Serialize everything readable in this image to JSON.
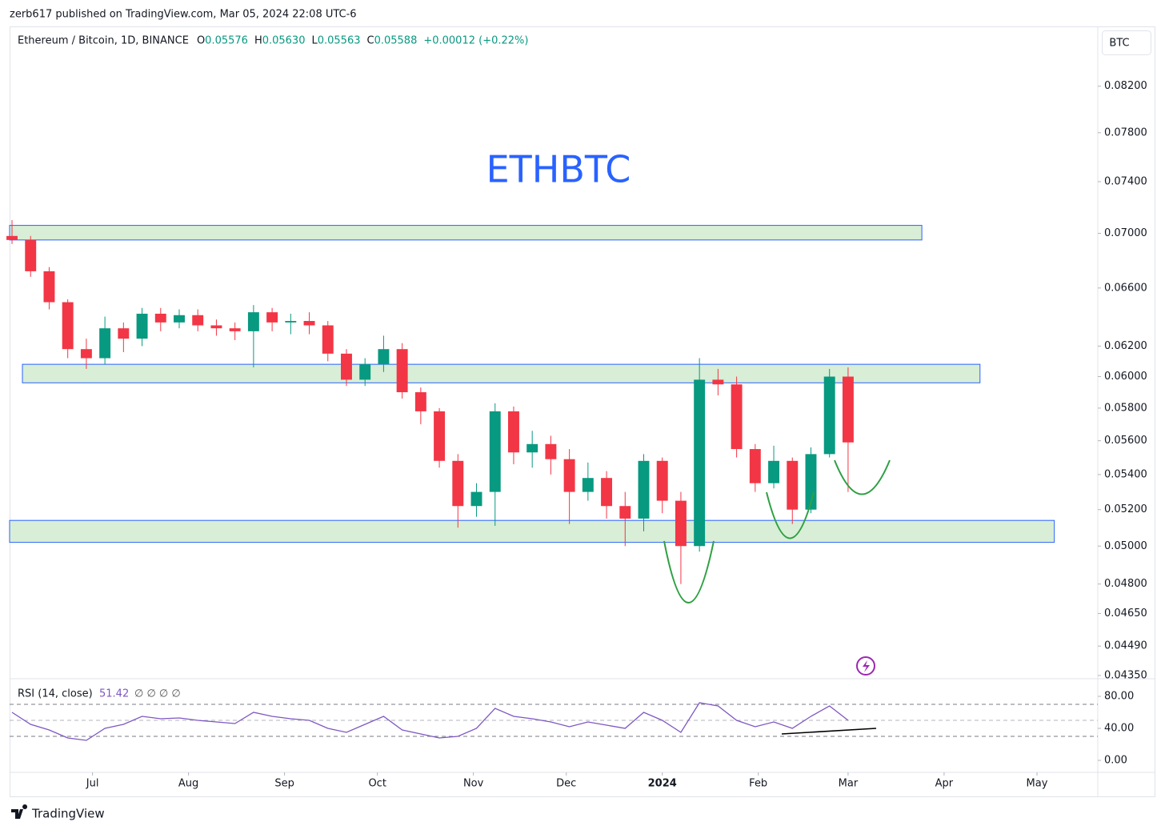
{
  "page": {
    "publisher": "zerb617 published on TradingView.com, Mar 05, 2024 22:08 UTC-6",
    "brand": "TradingView",
    "currency": "BTC"
  },
  "header": {
    "symbol": "Ethereum / Bitcoin, 1D, BINANCE",
    "ohlc": [
      {
        "label": "O",
        "value": "0.05576"
      },
      {
        "label": "H",
        "value": "0.05630"
      },
      {
        "label": "L",
        "value": "0.05563"
      },
      {
        "label": "C",
        "value": "0.05588"
      }
    ],
    "change": "+0.00012 (+0.22%)"
  },
  "chart_data": [
    {
      "type": "candlestick",
      "title": "ETHBTC",
      "log_scale": true,
      "up_color": "#089981",
      "down_color": "#f23645",
      "xlim": [
        -0.13,
        58.44
      ],
      "xticks": [
        {
          "value": 4.333,
          "label": "Jul"
        },
        {
          "value": 9.5,
          "label": "Aug"
        },
        {
          "value": 14.667,
          "label": "Sep"
        },
        {
          "value": 19.667,
          "label": "Oct"
        },
        {
          "value": 24.833,
          "label": "Nov"
        },
        {
          "value": 29.833,
          "label": "Dec"
        },
        {
          "value": 35,
          "label": "2024"
        },
        {
          "value": 40.167,
          "label": "Feb"
        },
        {
          "value": 45,
          "label": "Mar"
        },
        {
          "value": 50.167,
          "label": "Apr"
        },
        {
          "value": 55.167,
          "label": "May"
        }
      ],
      "ylim": [
        0.0435,
        0.0873
      ],
      "yticks": [
        {
          "value": 0.082,
          "label": "0.08200"
        },
        {
          "value": 0.078,
          "label": "0.07800"
        },
        {
          "value": 0.074,
          "label": "0.07400"
        },
        {
          "value": 0.07,
          "label": "0.07000"
        },
        {
          "value": 0.066,
          "label": "0.06600"
        },
        {
          "value": 0.062,
          "label": "0.06200"
        },
        {
          "value": 0.06,
          "label": "0.06000"
        },
        {
          "value": 0.058,
          "label": "0.05800"
        },
        {
          "value": 0.056,
          "label": "0.05600"
        },
        {
          "value": 0.054,
          "label": "0.05400"
        },
        {
          "value": 0.052,
          "label": "0.05200"
        },
        {
          "value": 0.05,
          "label": "0.05000"
        },
        {
          "value": 0.048,
          "label": "0.04800"
        },
        {
          "value": 0.0465,
          "label": "0.04650"
        },
        {
          "value": 0.0449,
          "label": "0.04490"
        },
        {
          "value": 0.0435,
          "label": "0.04350"
        }
      ],
      "zones": [
        {
          "x": [
            -0.13,
            48.97
          ],
          "y": [
            0.0695,
            0.0706
          ]
        },
        {
          "x": [
            0.56,
            52.1
          ],
          "y": [
            0.0596,
            0.0608
          ]
        },
        {
          "x": [
            -0.13,
            56.1
          ],
          "y": [
            0.0502,
            0.0514
          ]
        }
      ],
      "zone_color": "#d8eed6",
      "zone_border": "#2962ff",
      "candles": [
        {
          "open": 0.0698,
          "high": 0.071,
          "low": 0.0692,
          "close": 0.0695
        },
        {
          "open": 0.0695,
          "high": 0.0698,
          "low": 0.0668,
          "close": 0.0672
        },
        {
          "open": 0.0672,
          "high": 0.0675,
          "low": 0.0645,
          "close": 0.065
        },
        {
          "open": 0.065,
          "high": 0.0652,
          "low": 0.0612,
          "close": 0.0618
        },
        {
          "open": 0.0618,
          "high": 0.0625,
          "low": 0.0605,
          "close": 0.0612
        },
        {
          "open": 0.0612,
          "high": 0.064,
          "low": 0.0608,
          "close": 0.0632
        },
        {
          "open": 0.0632,
          "high": 0.0636,
          "low": 0.0616,
          "close": 0.0625
        },
        {
          "open": 0.0625,
          "high": 0.0646,
          "low": 0.062,
          "close": 0.0642
        },
        {
          "open": 0.0642,
          "high": 0.0646,
          "low": 0.063,
          "close": 0.0636
        },
        {
          "open": 0.0636,
          "high": 0.0645,
          "low": 0.0632,
          "close": 0.0641
        },
        {
          "open": 0.0641,
          "high": 0.0645,
          "low": 0.063,
          "close": 0.0634
        },
        {
          "open": 0.0634,
          "high": 0.0638,
          "low": 0.0627,
          "close": 0.0632
        },
        {
          "open": 0.0632,
          "high": 0.0636,
          "low": 0.0624,
          "close": 0.063
        },
        {
          "open": 0.063,
          "high": 0.0648,
          "low": 0.0606,
          "close": 0.0643
        },
        {
          "open": 0.0643,
          "high": 0.0646,
          "low": 0.063,
          "close": 0.0636
        },
        {
          "open": 0.0636,
          "high": 0.0642,
          "low": 0.0628,
          "close": 0.0637
        },
        {
          "open": 0.0637,
          "high": 0.0643,
          "low": 0.0628,
          "close": 0.0634
        },
        {
          "open": 0.0634,
          "high": 0.0637,
          "low": 0.061,
          "close": 0.0615
        },
        {
          "open": 0.0615,
          "high": 0.0618,
          "low": 0.0594,
          "close": 0.0598
        },
        {
          "open": 0.0598,
          "high": 0.0612,
          "low": 0.0594,
          "close": 0.0608
        },
        {
          "open": 0.0608,
          "high": 0.0627,
          "low": 0.0603,
          "close": 0.0618
        },
        {
          "open": 0.0618,
          "high": 0.0622,
          "low": 0.0586,
          "close": 0.059
        },
        {
          "open": 0.059,
          "high": 0.0593,
          "low": 0.057,
          "close": 0.0578
        },
        {
          "open": 0.0578,
          "high": 0.058,
          "low": 0.0544,
          "close": 0.0548
        },
        {
          "open": 0.0548,
          "high": 0.0552,
          "low": 0.051,
          "close": 0.0522
        },
        {
          "open": 0.0522,
          "high": 0.0535,
          "low": 0.0516,
          "close": 0.053
        },
        {
          "open": 0.053,
          "high": 0.0583,
          "low": 0.0511,
          "close": 0.0578
        },
        {
          "open": 0.0578,
          "high": 0.0581,
          "low": 0.0546,
          "close": 0.0553
        },
        {
          "open": 0.0553,
          "high": 0.0566,
          "low": 0.0544,
          "close": 0.0558
        },
        {
          "open": 0.0558,
          "high": 0.0563,
          "low": 0.054,
          "close": 0.0549
        },
        {
          "open": 0.0549,
          "high": 0.0555,
          "low": 0.0512,
          "close": 0.053
        },
        {
          "open": 0.053,
          "high": 0.0547,
          "low": 0.0525,
          "close": 0.0538
        },
        {
          "open": 0.0538,
          "high": 0.0542,
          "low": 0.0515,
          "close": 0.0522
        },
        {
          "open": 0.0522,
          "high": 0.053,
          "low": 0.05,
          "close": 0.0515
        },
        {
          "open": 0.0515,
          "high": 0.0552,
          "low": 0.0508,
          "close": 0.0548
        },
        {
          "open": 0.0548,
          "high": 0.055,
          "low": 0.0518,
          "close": 0.0525
        },
        {
          "open": 0.0525,
          "high": 0.053,
          "low": 0.048,
          "close": 0.05
        },
        {
          "open": 0.05,
          "high": 0.0612,
          "low": 0.0497,
          "close": 0.0598
        },
        {
          "open": 0.0598,
          "high": 0.0605,
          "low": 0.0588,
          "close": 0.0595
        },
        {
          "open": 0.0595,
          "high": 0.06,
          "low": 0.055,
          "close": 0.0555
        },
        {
          "open": 0.0555,
          "high": 0.0558,
          "low": 0.053,
          "close": 0.0535
        },
        {
          "open": 0.0535,
          "high": 0.0557,
          "low": 0.0532,
          "close": 0.0548
        },
        {
          "open": 0.0548,
          "high": 0.055,
          "low": 0.0512,
          "close": 0.052
        },
        {
          "open": 0.052,
          "high": 0.0556,
          "low": 0.0518,
          "close": 0.0552
        },
        {
          "open": 0.0552,
          "high": 0.0605,
          "low": 0.055,
          "close": 0.06
        },
        {
          "open": 0.06,
          "high": 0.0606,
          "low": 0.053,
          "close": 0.0559
        }
      ]
    },
    {
      "type": "line",
      "title": "RSI (14, close)",
      "last_value": "51.42",
      "extras": "∅ ∅ ∅ ∅",
      "color": "#7e57c2",
      "ylim": [
        -15,
        102
      ],
      "yticks": [
        {
          "value": 0,
          "label": "0.00"
        },
        {
          "value": 40,
          "label": "40.00"
        },
        {
          "value": 80,
          "label": "80.00"
        }
      ],
      "bands": [
        70,
        50,
        30
      ],
      "values": [
        60,
        45,
        38,
        28,
        25,
        40,
        45,
        55,
        52,
        53,
        50,
        48,
        46,
        60,
        55,
        52,
        50,
        40,
        35,
        45,
        55,
        38,
        33,
        28,
        30,
        40,
        65,
        55,
        52,
        48,
        42,
        48,
        44,
        40,
        60,
        50,
        35,
        72,
        68,
        50,
        42,
        48,
        40,
        55,
        68,
        50
      ]
    }
  ]
}
